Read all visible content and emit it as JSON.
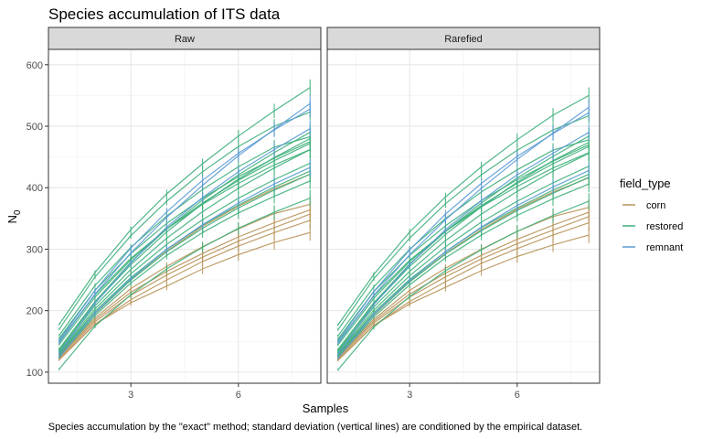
{
  "chart_data": {
    "type": "line",
    "title": "Species accumulation of ITS data",
    "caption": "Species accumulation by the \"exact\" method; standard deviation (vertical lines) are conditioned by the empirical dataset.",
    "xlabel": "Samples",
    "ylabel_main": "N",
    "ylabel_sub": "0",
    "xlim": [
      0.7,
      8.3
    ],
    "ylim": [
      82,
      625
    ],
    "x_ticks": [
      3,
      6
    ],
    "y_ticks": [
      100,
      200,
      300,
      400,
      500,
      600
    ],
    "x": [
      1,
      2,
      3,
      4,
      5,
      6,
      7,
      8
    ],
    "grid": true,
    "legend": {
      "title": "field_type",
      "position": "right",
      "entries": [
        {
          "label": "corn",
          "color": "#B8935A"
        },
        {
          "label": "restored",
          "color": "#3DAF7A"
        },
        {
          "label": "remnant",
          "color": "#5A9BD4"
        }
      ]
    },
    "facets": [
      {
        "name": "Raw",
        "series": [
          {
            "group": "corn",
            "values": [
              120,
              178,
              213,
              240,
              268,
              291,
              311,
              327
            ]
          },
          {
            "group": "corn",
            "values": [
              122,
              178,
              218,
              250,
              280,
              305,
              327,
              347
            ]
          },
          {
            "group": "corn",
            "values": [
              124,
              182,
              225,
              258,
              287,
              313,
              335,
              357
            ]
          },
          {
            "group": "corn",
            "values": [
              126,
              185,
              230,
              264,
              293,
              320,
              343,
              364
            ]
          },
          {
            "group": "corn",
            "values": [
              128,
              188,
              236,
              272,
              304,
              333,
              358,
              373
            ]
          },
          {
            "group": "corn",
            "values": [
              130,
              195,
              250,
              297,
              337,
              370,
              398,
              422
            ]
          },
          {
            "group": "restored",
            "values": [
              105,
              175,
              226,
              268,
              303,
              334,
              360,
              383
            ]
          },
          {
            "group": "restored",
            "values": [
              125,
              192,
              245,
              290,
              327,
              359,
              386,
              411
            ]
          },
          {
            "group": "restored",
            "values": [
              128,
              196,
              250,
              296,
              334,
              367,
              396,
              422
            ]
          },
          {
            "group": "restored",
            "values": [
              130,
              199,
              254,
              300,
              339,
              372,
              401,
              427
            ]
          },
          {
            "group": "restored",
            "values": [
              132,
              203,
              260,
              308,
              348,
              383,
              413,
              440
            ]
          },
          {
            "group": "restored",
            "values": [
              134,
              208,
              267,
              318,
              361,
              399,
              432,
              462
            ]
          },
          {
            "group": "restored",
            "values": [
              136,
              213,
              275,
              328,
              374,
              414,
              449,
              480
            ]
          },
          {
            "group": "restored",
            "values": [
              138,
              215,
              279,
              333,
              380,
              421,
              457,
              490
            ]
          },
          {
            "group": "restored",
            "values": [
              150,
              226,
              285,
              333,
              373,
              407,
              437,
              462
            ]
          },
          {
            "group": "restored",
            "values": [
              145,
              222,
              283,
              333,
              375,
              412,
              444,
              472
            ]
          },
          {
            "group": "restored",
            "values": [
              155,
              233,
              293,
              342,
              383,
              418,
              448,
              475
            ]
          },
          {
            "group": "restored",
            "values": [
              160,
              241,
              303,
              354,
              397,
              434,
              466,
              483
            ]
          },
          {
            "group": "restored",
            "values": [
              170,
              255,
              322,
              378,
              426,
              467,
              500,
              523
            ]
          },
          {
            "group": "restored",
            "values": [
              178,
              262,
              332,
              390,
              439,
              484,
              525,
              563
            ]
          },
          {
            "group": "remnant",
            "values": [
              124,
              196,
              252,
              300,
              340,
              375,
              406,
              433
            ]
          },
          {
            "group": "remnant",
            "values": [
              130,
              212,
              278,
              336,
              384,
              426,
              462,
              496
            ]
          },
          {
            "group": "remnant",
            "values": [
              148,
              227,
              294,
              352,
              404,
              452,
              495,
              537
            ]
          },
          {
            "group": "remnant",
            "values": [
              152,
              233,
              302,
              361,
              412,
              456,
              494,
              528
            ]
          }
        ]
      },
      {
        "name": "Rarefied",
        "series": [
          {
            "group": "corn",
            "values": [
              119,
              176,
              211,
              238,
              265,
              288,
              307,
              323
            ]
          },
          {
            "group": "corn",
            "values": [
              121,
              176,
              215,
              247,
              277,
              301,
              323,
              343
            ]
          },
          {
            "group": "corn",
            "values": [
              123,
              180,
              222,
              255,
              284,
              309,
              331,
              353
            ]
          },
          {
            "group": "corn",
            "values": [
              125,
              183,
              227,
              261,
              290,
              316,
              339,
              360
            ]
          },
          {
            "group": "corn",
            "values": [
              127,
              186,
              233,
              269,
              300,
              329,
              353,
              368
            ]
          },
          {
            "group": "corn",
            "values": [
              129,
              193,
              247,
              293,
              332,
              365,
              393,
              416
            ]
          },
          {
            "group": "restored",
            "values": [
              104,
              173,
              223,
              265,
              299,
              329,
              355,
              378
            ]
          },
          {
            "group": "restored",
            "values": [
              124,
              190,
              242,
              286,
              323,
              355,
              382,
              406
            ]
          },
          {
            "group": "restored",
            "values": [
              127,
              194,
              247,
              292,
              330,
              363,
              391,
              417
            ]
          },
          {
            "group": "restored",
            "values": [
              129,
              197,
              251,
              296,
              335,
              367,
              396,
              422
            ]
          },
          {
            "group": "restored",
            "values": [
              131,
              201,
              257,
              304,
              344,
              378,
              408,
              435
            ]
          },
          {
            "group": "restored",
            "values": [
              133,
              206,
              264,
              314,
              357,
              394,
              427,
              456
            ]
          },
          {
            "group": "restored",
            "values": [
              135,
              211,
              272,
              324,
              369,
              409,
              444,
              474
            ]
          },
          {
            "group": "restored",
            "values": [
              137,
              213,
              276,
              329,
              375,
              416,
              451,
              484
            ]
          },
          {
            "group": "restored",
            "values": [
              149,
              224,
              282,
              329,
              369,
              402,
              432,
              457
            ]
          },
          {
            "group": "restored",
            "values": [
              144,
              220,
              280,
              329,
              371,
              407,
              439,
              467
            ]
          },
          {
            "group": "restored",
            "values": [
              154,
              231,
              290,
              338,
              379,
              413,
              443,
              470
            ]
          },
          {
            "group": "restored",
            "values": [
              159,
              239,
              300,
              350,
              393,
              429,
              461,
              478
            ]
          },
          {
            "group": "restored",
            "values": [
              169,
              252,
              318,
              374,
              421,
              461,
              494,
              517
            ]
          },
          {
            "group": "restored",
            "values": [
              177,
              259,
              328,
              385,
              434,
              478,
              518,
              550
            ]
          },
          {
            "group": "remnant",
            "values": [
              123,
              194,
              249,
              296,
              336,
              371,
              401,
              428
            ]
          },
          {
            "group": "remnant",
            "values": [
              129,
              210,
              275,
              332,
              379,
              421,
              456,
              490
            ]
          },
          {
            "group": "remnant",
            "values": [
              147,
              225,
              291,
              348,
              399,
              446,
              489,
              531
            ]
          },
          {
            "group": "remnant",
            "values": [
              151,
              231,
              299,
              357,
              407,
              451,
              488,
              522
            ]
          }
        ]
      }
    ]
  }
}
